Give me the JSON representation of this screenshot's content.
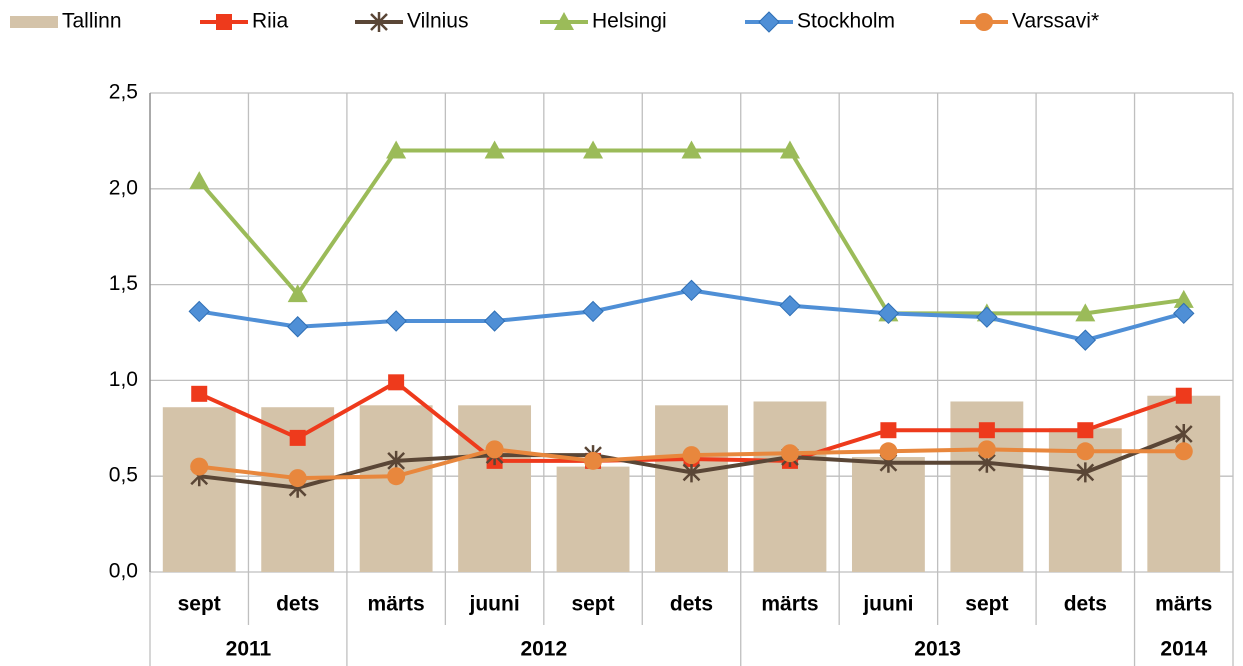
{
  "chart_data": {
    "type": "combo",
    "categories": [
      "sept",
      "dets",
      "märts",
      "juuni",
      "sept",
      "dets",
      "märts",
      "juuni",
      "sept",
      "dets",
      "märts"
    ],
    "groups": [
      {
        "label": "2011",
        "count": 2
      },
      {
        "label": "2012",
        "count": 4
      },
      {
        "label": "2013",
        "count": 4
      },
      {
        "label": "2014",
        "count": 1
      }
    ],
    "series": [
      {
        "name": "Tallinn",
        "type": "bar",
        "color": "#d4c3a9",
        "values": [
          0.86,
          0.86,
          0.87,
          0.87,
          0.55,
          0.87,
          0.89,
          0.6,
          0.89,
          0.75,
          0.92
        ]
      },
      {
        "name": "Riia",
        "type": "line",
        "marker": "square",
        "color": "#ee3a1c",
        "values": [
          0.93,
          0.7,
          0.99,
          0.58,
          0.58,
          0.59,
          0.58,
          0.74,
          0.74,
          0.74,
          0.92
        ]
      },
      {
        "name": "Vilnius",
        "type": "line",
        "marker": "star",
        "color": "#5a4636",
        "values": [
          0.5,
          0.44,
          0.58,
          0.61,
          0.61,
          0.52,
          0.6,
          0.57,
          0.57,
          0.52,
          0.72
        ]
      },
      {
        "name": "Helsingi",
        "type": "line",
        "marker": "triangle",
        "color": "#9bbb59",
        "values": [
          2.04,
          1.45,
          2.2,
          2.2,
          2.2,
          2.2,
          2.2,
          1.35,
          1.35,
          1.35,
          1.42
        ]
      },
      {
        "name": "Stockholm",
        "type": "line",
        "marker": "diamond",
        "color": "#4f8fd6",
        "values": [
          1.36,
          1.28,
          1.31,
          1.31,
          1.36,
          1.47,
          1.39,
          1.35,
          1.33,
          1.21,
          1.35
        ]
      },
      {
        "name": "Varssavi*",
        "type": "line",
        "marker": "circle",
        "color": "#e8873d",
        "values": [
          0.55,
          0.49,
          0.5,
          0.64,
          0.58,
          0.61,
          0.62,
          0.63,
          0.64,
          0.63,
          0.63
        ]
      }
    ],
    "ylim": [
      0,
      2.5
    ],
    "yticks": [
      {
        "value": 0,
        "label": "0,0"
      },
      {
        "value": 0.5,
        "label": "0,5"
      },
      {
        "value": 1,
        "label": "1,0"
      },
      {
        "value": 1.5,
        "label": "1,5"
      },
      {
        "value": 2,
        "label": "2,0"
      },
      {
        "value": 2.5,
        "label": "2,5"
      }
    ],
    "grid": true,
    "legend": "top"
  }
}
